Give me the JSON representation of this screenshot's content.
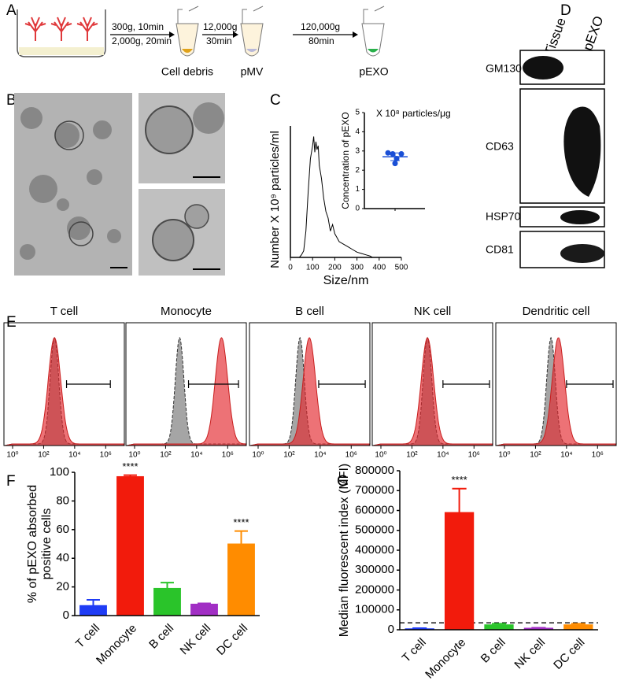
{
  "panel_labels": [
    "A",
    "B",
    "C",
    "D",
    "E",
    "F",
    "G"
  ],
  "workflow": {
    "spin1": [
      "300g, 10min",
      "2,000g, 20min"
    ],
    "spin2": [
      "12,000g",
      "30min"
    ],
    "spin3": [
      "120,000g",
      "80min"
    ],
    "products": [
      "Cell debris",
      "pMV",
      "pEXO"
    ]
  },
  "western_blot": {
    "lanes": [
      "Tissue",
      "pEXO"
    ],
    "proteins": [
      "GM130",
      "CD63",
      "HSP70",
      "CD81"
    ]
  },
  "flow_cytometry": {
    "log": true,
    "xlim": [
      1,
      10000000
    ],
    "xticks": [
      {
        "value": 1,
        "label": "10⁰"
      },
      {
        "value": 100,
        "label": "10²"
      },
      {
        "value": 10000,
        "label": "10⁴"
      },
      {
        "value": 1000000,
        "label": "10⁶"
      }
    ],
    "panels": [
      {
        "title": "T cell",
        "control_peak": 500,
        "sample_peak": 500,
        "gate": [
          3000,
          2000000
        ]
      },
      {
        "title": "Monocyte",
        "control_peak": 800,
        "sample_peak": 400000,
        "gate": [
          3000,
          5000000
        ]
      },
      {
        "title": "B cell",
        "control_peak": 500,
        "sample_peak": 2000,
        "gate": [
          8000,
          8000000
        ]
      },
      {
        "title": "NK cell",
        "control_peak": 1000,
        "sample_peak": 1000,
        "gate": [
          10000,
          10000000
        ]
      },
      {
        "title": "Dendritic cell",
        "control_peak": 1000,
        "sample_peak": 3000,
        "gate": [
          10000,
          10000000
        ]
      }
    ]
  },
  "chart_data": [
    {
      "type": "line",
      "ylabel": "Number X 10⁹ particles/ml",
      "xlabel": "Size/nm",
      "xlim": [
        0,
        500
      ],
      "xticks": [
        0,
        100,
        200,
        300,
        400,
        500
      ],
      "ylim": [
        0,
        100
      ],
      "color": "#000000",
      "x": [
        40,
        50,
        60,
        70,
        80,
        90,
        100,
        105,
        110,
        115,
        120,
        125,
        130,
        140,
        150,
        160,
        170,
        180,
        190,
        200,
        210,
        220,
        240,
        260,
        280,
        300,
        320,
        340,
        360,
        370
      ],
      "values": [
        0,
        2,
        5,
        20,
        50,
        75,
        85,
        92,
        80,
        88,
        82,
        85,
        70,
        60,
        45,
        35,
        30,
        20,
        25,
        18,
        15,
        12,
        10,
        8,
        6,
        4,
        3,
        2,
        1,
        0
      ]
    },
    {
      "type": "scatter",
      "title": "X 10⁸ particles/μg",
      "ylabel": "Concentration of pEXO",
      "ylim": [
        0,
        5
      ],
      "yticks": [
        0,
        1,
        2,
        3,
        4,
        5
      ],
      "color": "#1a4fd6",
      "values": [
        2.9,
        2.85,
        2.6,
        2.35,
        2.85
      ],
      "mean": 2.7,
      "sd": 0.2
    },
    {
      "type": "bar",
      "ylabel": [
        "% of pEXO absorbed",
        "positive cells"
      ],
      "ylim": [
        0,
        100
      ],
      "yticks": [
        0,
        20,
        40,
        60,
        80,
        100
      ],
      "categories": [
        "T cell",
        "Monocyte",
        "B cell",
        "NK cell",
        "DC cell"
      ],
      "values": [
        7,
        97,
        19,
        8,
        50
      ],
      "errors": [
        4,
        1,
        4,
        0.5,
        9
      ],
      "colors": [
        "#1f3cf5",
        "#f21b0c",
        "#2ac42a",
        "#a12ec4",
        "#ff8c00"
      ],
      "annotations": [
        null,
        "****",
        null,
        null,
        "****"
      ]
    },
    {
      "type": "bar",
      "ylabel": [
        "Median fluorescent index (MFI)"
      ],
      "ylim": [
        0,
        800000
      ],
      "yticks": [
        0,
        100000,
        200000,
        300000,
        400000,
        500000,
        600000,
        700000,
        800000
      ],
      "categories": [
        "T cell",
        "Monocyte",
        "B cell",
        "NK cell",
        "DC cell"
      ],
      "values": [
        5000,
        590000,
        25000,
        8000,
        25000
      ],
      "errors": [
        3000,
        120000,
        5000,
        2000,
        5000
      ],
      "colors": [
        "#1f3cf5",
        "#f21b0c",
        "#2ac42a",
        "#a12ec4",
        "#ff8c00"
      ],
      "annotations": [
        null,
        "****",
        null,
        null,
        null
      ],
      "reference_line": 35000
    }
  ]
}
